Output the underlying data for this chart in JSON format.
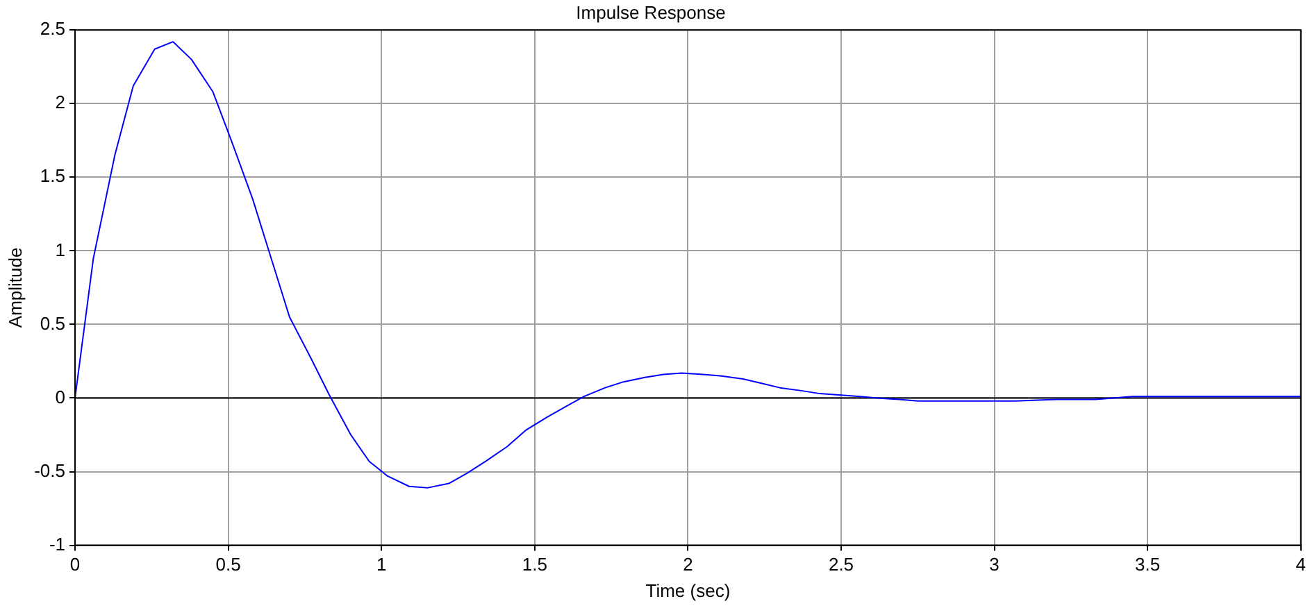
{
  "chart_data": {
    "type": "line",
    "title": "Impulse Response",
    "xlabel": "Time (sec)",
    "ylabel": "Amplitude",
    "x": [
      0,
      0.06,
      0.13,
      0.19,
      0.26,
      0.32,
      0.38,
      0.45,
      0.51,
      0.58,
      0.64,
      0.7,
      0.77,
      0.83,
      0.9,
      0.96,
      1.02,
      1.09,
      1.15,
      1.22,
      1.28,
      1.34,
      1.41,
      1.47,
      1.54,
      1.6,
      1.66,
      1.73,
      1.79,
      1.86,
      1.92,
      1.98,
      2.05,
      2.11,
      2.18,
      2.24,
      2.3,
      2.37,
      2.43,
      2.5,
      2.56,
      2.62,
      2.69,
      2.75,
      2.82,
      2.88,
      3.07,
      3.2,
      3.33,
      3.45,
      3.6,
      4
    ],
    "series": [
      {
        "color": "#0000ff",
        "values": [
          0,
          0.95,
          1.65,
          2.12,
          2.37,
          2.42,
          2.3,
          2.08,
          1.75,
          1.35,
          0.95,
          0.55,
          0.27,
          0.02,
          -0.25,
          -0.43,
          -0.53,
          -0.6,
          -0.61,
          -0.58,
          -0.51,
          -0.43,
          -0.33,
          -0.22,
          -0.13,
          -0.06,
          0.01,
          0.07,
          0.11,
          0.14,
          0.16,
          0.17,
          0.16,
          0.15,
          0.13,
          0.1,
          0.07,
          0.05,
          0.03,
          0.02,
          0.01,
          0,
          -0.01,
          -0.02,
          -0.02,
          -0.02,
          -0.02,
          -0.01,
          -0.01,
          0.01,
          0.01,
          0.01
        ]
      }
    ],
    "xlim": [
      0,
      4
    ],
    "xticks": [
      0,
      0.5,
      1,
      1.5,
      2,
      2.5,
      3,
      3.5,
      4
    ],
    "ylim": [
      -1,
      2.5
    ],
    "yticks": [
      -1,
      -0.5,
      0,
      0.5,
      1,
      1.5,
      2,
      2.5
    ],
    "ref_lines": [
      {
        "axis": "y",
        "value": 0,
        "color": "#000000"
      }
    ],
    "grid": true,
    "legend": false,
    "marker": "none",
    "line_style": "solid"
  }
}
